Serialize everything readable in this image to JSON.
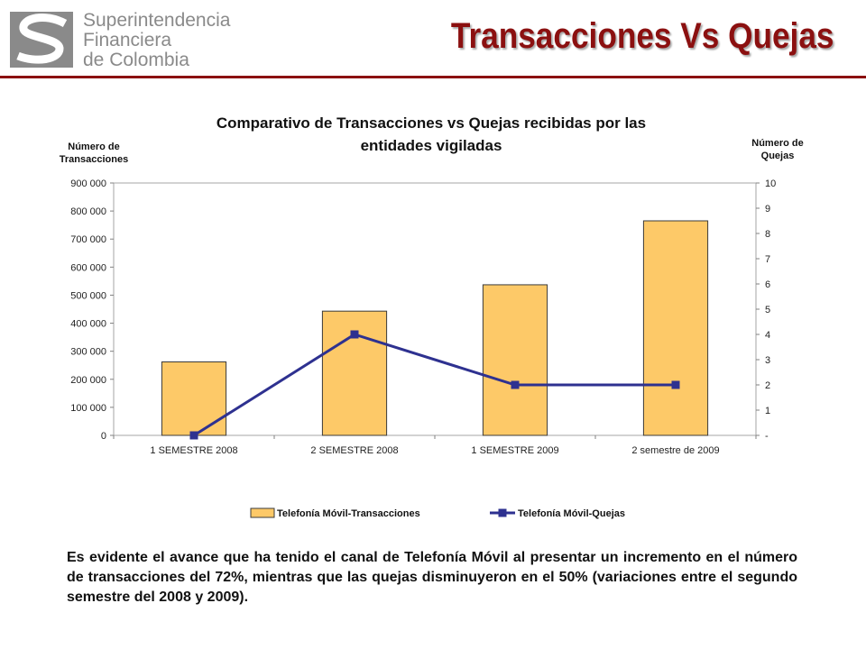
{
  "header": {
    "logo_lines": [
      "Superintendencia",
      "Financiera",
      "de Colombia"
    ],
    "title": "Transacciones Vs Quejas",
    "accent_color": "#8b1010"
  },
  "chart_data": {
    "type": "bar",
    "title_lines": [
      "Comparativo de Transacciones vs Quejas recibidas por  las",
      "entidades vigiladas"
    ],
    "ylabel_left_lines": [
      "Número de",
      "Transacciones"
    ],
    "ylabel_right_lines": [
      "Número de",
      "Quejas"
    ],
    "categories": [
      "1 SEMESTRE 2008",
      "2 SEMESTRE 2008",
      "1 SEMESTRE 2009",
      "2 semestre de 2009"
    ],
    "ylim_left": [
      0,
      900000
    ],
    "ylim_right": [
      0,
      10
    ],
    "left_ticks": [
      "0",
      "100 000",
      "200 000",
      "300 000",
      "400 000",
      "500 000",
      "600 000",
      "700 000",
      "800 000",
      "900 000"
    ],
    "right_ticks": [
      "-",
      "1",
      "2",
      "3",
      "4",
      "5",
      "6",
      "7",
      "8",
      "9",
      "10"
    ],
    "series": [
      {
        "name": "Telefonía Móvil-Transacciones",
        "type": "bar",
        "axis": "left",
        "values": [
          262000,
          443000,
          537000,
          765000
        ],
        "color": "#fdc968"
      },
      {
        "name": "Telefonía Móvil-Quejas",
        "type": "line",
        "axis": "right",
        "values": [
          0,
          4,
          2,
          2
        ],
        "color": "#2e3190"
      }
    ],
    "grid": false,
    "legend_position": "bottom"
  },
  "description": "Es evidente el avance que ha tenido el canal de Telefonía Móvil al presentar un incremento en el número de transacciones del 72%, mientras que las quejas disminuyeron en el 50% (variaciones entre el segundo semestre del 2008 y 2009)."
}
